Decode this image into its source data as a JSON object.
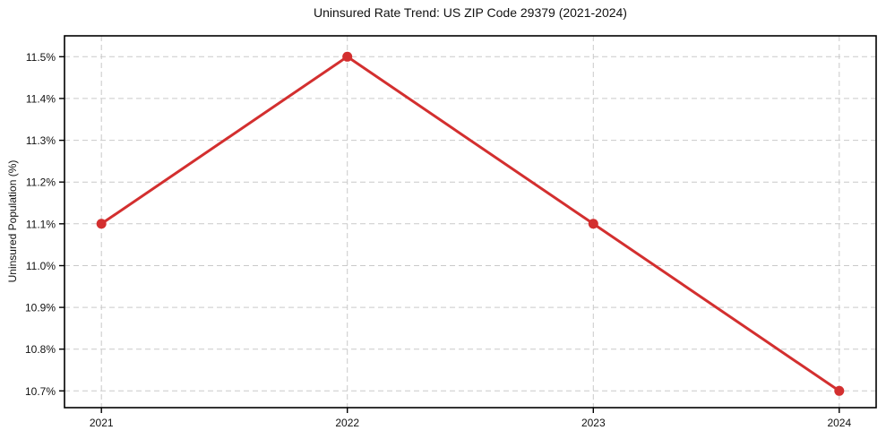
{
  "chart_data": {
    "type": "line",
    "title": "Uninsured Rate Trend: US ZIP Code 29379 (2021-2024)",
    "xlabel": "",
    "ylabel": "Uninsured Population (%)",
    "x": [
      2021,
      2022,
      2023,
      2024
    ],
    "x_tick_labels": [
      "2021",
      "2022",
      "2023",
      "2024"
    ],
    "values": [
      11.1,
      11.5,
      11.1,
      10.7
    ],
    "value_unit": "%",
    "yticks": [
      10.7,
      10.8,
      10.9,
      11.0,
      11.1,
      11.2,
      11.3,
      11.4,
      11.5
    ],
    "ytick_suffix": "%",
    "xlim": [
      2020.85,
      2024.15
    ],
    "ylim": [
      10.66,
      11.55
    ],
    "grid": true,
    "legend": "none",
    "colors": {
      "line": "#d32f2f",
      "marker": "#d32f2f",
      "grid": "#c9c9c9",
      "spine": "#000000",
      "text": "#111111"
    }
  }
}
